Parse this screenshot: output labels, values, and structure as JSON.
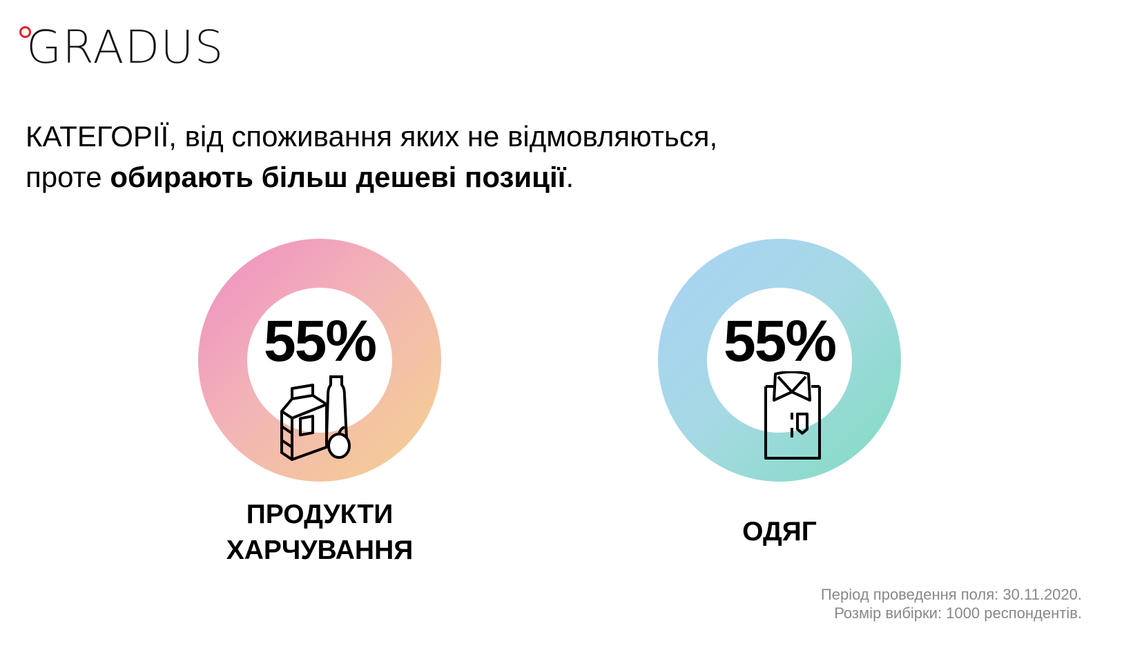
{
  "logo": {
    "text": "GRADUS",
    "accent_color": "#e0202e"
  },
  "title": {
    "line1": "КАТЕГОРІЇ, від споживання яких не відмовляються,",
    "line2_regular": "проте ",
    "line2_bold": "обирають більш дешеві позиції",
    "line2_end": "."
  },
  "categories": [
    {
      "value": "55%",
      "percent": 55,
      "label_line1": "ПРОДУКТИ",
      "label_line2": "ХАРЧУВАННЯ",
      "icon": "groceries-icon",
      "colors": [
        "#ef8cc4",
        "#f5d28e"
      ]
    },
    {
      "value": "55%",
      "percent": 55,
      "label_line1": "ОДЯГ",
      "icon": "shirt-icon",
      "colors": [
        "#abd2f7",
        "#7fdcbf"
      ]
    }
  ],
  "footer": {
    "period": "Період проведення поля: 30.11.2020.",
    "sample": "Розмір вибірки: 1000 респондентів."
  }
}
